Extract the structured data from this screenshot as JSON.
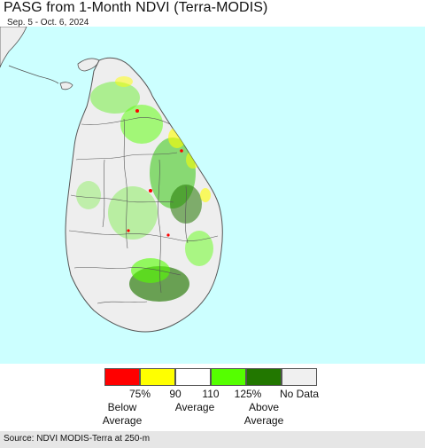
{
  "header": {
    "title": "PASG from 1-Month NDVI (Terra-MODIS)",
    "date_range": "Sep. 5 - Oct. 6, 2024"
  },
  "map": {
    "ocean_color": "#ccffff",
    "land_color": "#eeeeee",
    "border_color": "#555555"
  },
  "legend": {
    "swatch_colors": [
      "#ff0000",
      "#ffff00",
      "#ffffff",
      "#55ff00",
      "#227700",
      "#f0f0f0"
    ],
    "ticks": [
      "75%",
      "90",
      "110",
      "125%"
    ],
    "no_data_label": "No Data",
    "below_label": "Below",
    "below_label_2": "Average",
    "average_label": "Average",
    "above_label": "Above",
    "above_label_2": "Average"
  },
  "footer": {
    "source": "Source: NDVI MODIS-Terra at 250-m"
  }
}
